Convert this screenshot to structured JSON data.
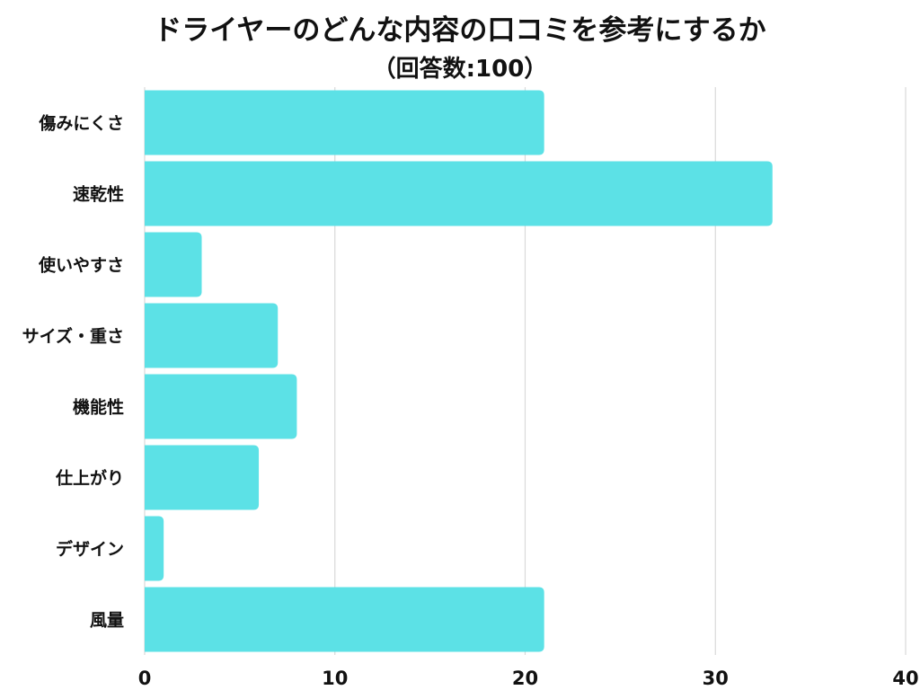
{
  "chart_data": {
    "type": "bar",
    "orientation": "horizontal",
    "title": "ドライヤーのどんな内容の口コミを参考にするか",
    "subtitle": "（回答数:100）",
    "categories": [
      "傷みにくさ",
      "速乾性",
      "使いやすさ",
      "サイズ・重さ",
      "機能性",
      "仕上がり",
      "デザイン",
      "風量"
    ],
    "values": [
      21,
      33,
      3,
      7,
      8,
      6,
      1,
      21
    ],
    "xlim": [
      0,
      40
    ],
    "xticks": [
      0,
      10,
      20,
      30,
      40
    ],
    "grid": "vertical",
    "colors": {
      "bar": "#5ce1e6",
      "grid": "#d9d9d9",
      "text": "#111111"
    }
  }
}
